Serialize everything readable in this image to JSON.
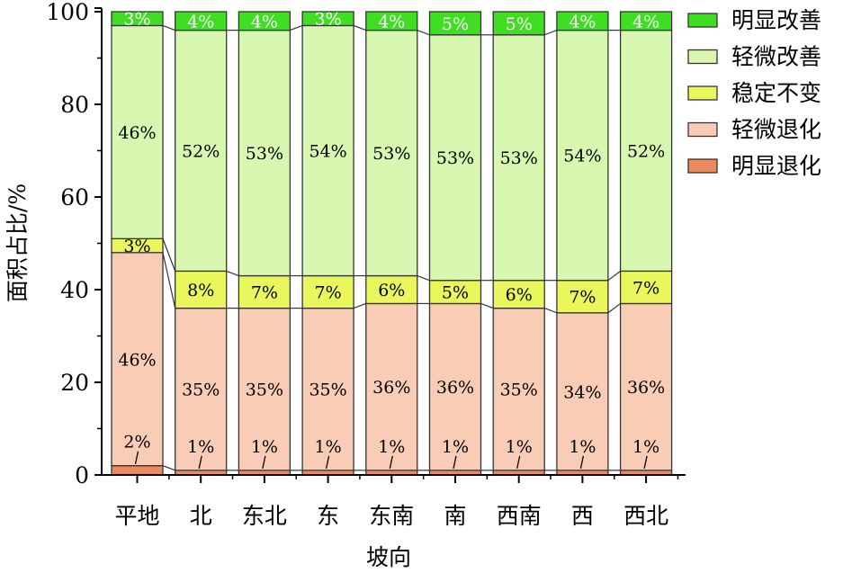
{
  "chart_data": {
    "type": "bar",
    "stacked": true,
    "title": "",
    "xlabel": "坡向",
    "ylabel": "面积占比/%",
    "ylim": [
      0,
      100
    ],
    "yticks": [
      0,
      20,
      40,
      60,
      80,
      100
    ],
    "grid": false,
    "legend_placement": "right",
    "categories": [
      "平地",
      "北",
      "东北",
      "东",
      "东南",
      "南",
      "西南",
      "西",
      "西北"
    ],
    "series": [
      {
        "name": "明显退化",
        "color": "#ec8a5f",
        "values": [
          2,
          1,
          1,
          1,
          1,
          1,
          1,
          1,
          1
        ]
      },
      {
        "name": "轻微退化",
        "color": "#f9cdb5",
        "values": [
          46,
          35,
          35,
          35,
          36,
          36,
          35,
          34,
          36
        ]
      },
      {
        "name": "稳定不变",
        "color": "#eaf75c",
        "values": [
          3,
          8,
          7,
          7,
          6,
          5,
          6,
          7,
          7
        ]
      },
      {
        "name": "轻微改善",
        "color": "#d8f8b2",
        "values": [
          46,
          52,
          53,
          54,
          53,
          53,
          53,
          54,
          52
        ]
      },
      {
        "name": "明显改善",
        "color": "#3fde22",
        "values": [
          3,
          4,
          4,
          3,
          4,
          5,
          5,
          4,
          4
        ]
      }
    ],
    "legend_order": [
      "明显改善",
      "轻微改善",
      "稳定不变",
      "轻微退化",
      "明显退化"
    ]
  }
}
